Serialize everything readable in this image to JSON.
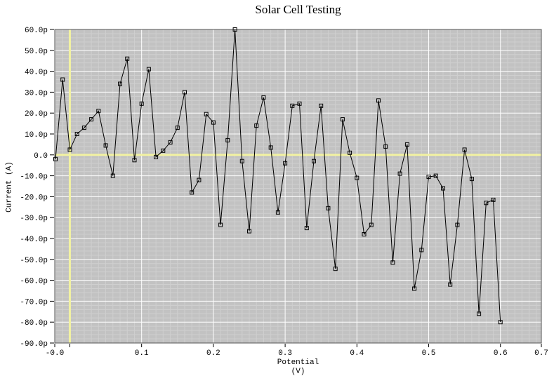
{
  "chart_data": {
    "type": "line",
    "title": "Solar Cell Testing",
    "ylabel": "Current (A)",
    "xlabel_line1": "Potential",
    "xlabel_line2": "(V)",
    "marker": "open-square",
    "grid": true,
    "x_range": [
      -0.021,
      0.657
    ],
    "y_range": [
      -90,
      60
    ],
    "y_unit": "pA (axis shows p = pico)",
    "x_ticks": [
      {
        "value": -0.021,
        "label": "-0.0"
      },
      {
        "value": 0.0,
        "label": ""
      },
      {
        "value": 0.1,
        "label": "0.1"
      },
      {
        "value": 0.2,
        "label": "0.2"
      },
      {
        "value": 0.3,
        "label": "0.3"
      },
      {
        "value": 0.4,
        "label": "0.4"
      },
      {
        "value": 0.5,
        "label": "0.5"
      },
      {
        "value": 0.6,
        "label": "0.6"
      },
      {
        "value": 0.657,
        "label": "0.7"
      }
    ],
    "y_ticks": [
      {
        "value": 60,
        "label": "60.0p"
      },
      {
        "value": 50,
        "label": "50.0p"
      },
      {
        "value": 40,
        "label": "40.0p"
      },
      {
        "value": 30,
        "label": "30.0p"
      },
      {
        "value": 20,
        "label": "20.0p"
      },
      {
        "value": 10,
        "label": "10.0p"
      },
      {
        "value": 0,
        "label": "0.0"
      },
      {
        "value": -10,
        "label": "-10.0p"
      },
      {
        "value": -20,
        "label": "-20.0p"
      },
      {
        "value": -30,
        "label": "-30.0p"
      },
      {
        "value": -40,
        "label": "-40.0p"
      },
      {
        "value": -50,
        "label": "-50.0p"
      },
      {
        "value": -60,
        "label": "-60.0p"
      },
      {
        "value": -70,
        "label": "-70.0p"
      },
      {
        "value": -80,
        "label": "-80.0p"
      },
      {
        "value": -90,
        "label": "-90.0p"
      }
    ],
    "x": [
      -0.02,
      -0.01,
      0.0,
      0.01,
      0.02,
      0.03,
      0.04,
      0.05,
      0.06,
      0.07,
      0.08,
      0.09,
      0.1,
      0.11,
      0.12,
      0.13,
      0.14,
      0.15,
      0.16,
      0.17,
      0.18,
      0.19,
      0.2,
      0.21,
      0.22,
      0.23,
      0.24,
      0.25,
      0.26,
      0.27,
      0.28,
      0.29,
      0.3,
      0.31,
      0.32,
      0.33,
      0.34,
      0.35,
      0.36,
      0.37,
      0.38,
      0.39,
      0.4,
      0.41,
      0.42,
      0.43,
      0.44,
      0.45,
      0.46,
      0.47,
      0.48,
      0.49,
      0.5,
      0.51,
      0.52,
      0.53,
      0.54,
      0.55,
      0.56,
      0.57,
      0.58,
      0.59,
      0.6
    ],
    "y": [
      -2,
      36,
      2.5,
      10,
      13,
      17,
      21,
      4.5,
      -10,
      34,
      46,
      -2.5,
      24.5,
      41,
      -1,
      2,
      6,
      13,
      30,
      -18,
      -12,
      19.5,
      15.5,
      -33.5,
      7,
      60,
      -3,
      -36.5,
      14,
      27.5,
      3.5,
      -27.5,
      -4,
      23.5,
      24.5,
      -35,
      -3,
      23.5,
      -25.5,
      -54.5,
      17,
      1,
      -11,
      -38,
      -33.5,
      26,
      4,
      -51.5,
      -9,
      5,
      -64,
      -45.5,
      -10.5,
      -10,
      -16,
      -62,
      -33.5,
      2.5,
      -11.5,
      -76,
      -23,
      -21.5,
      -80
    ],
    "colors": {
      "page_bg": "#ffffff",
      "plot_bg": "#c2c2c2",
      "minor_grid": "#cfcfcf",
      "major_grid": "#ffffff",
      "zero_line": "#f2f2a2",
      "series": "#000000",
      "frame": "#555555",
      "text": "#000000"
    }
  }
}
